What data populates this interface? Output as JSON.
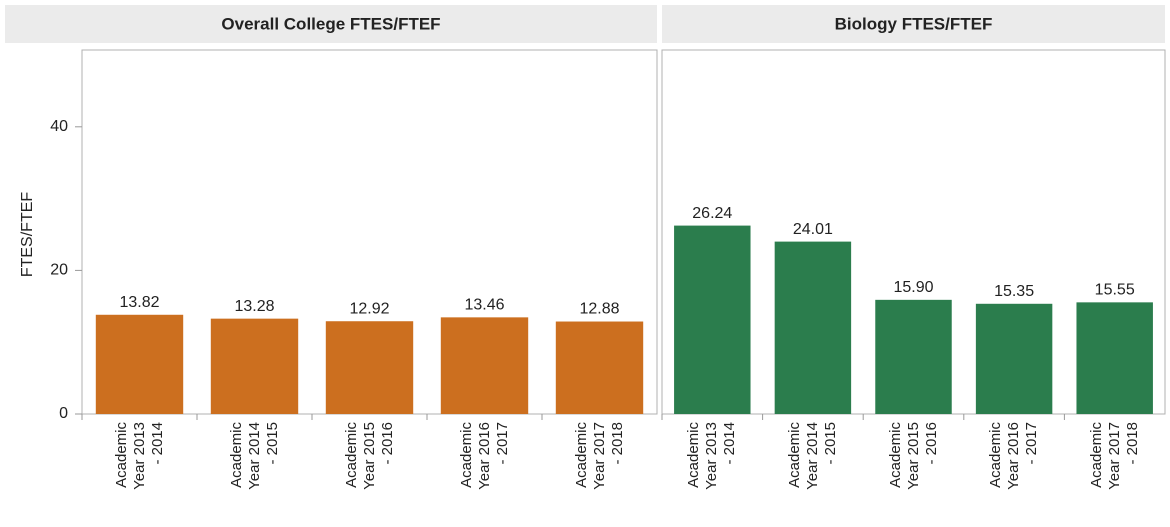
{
  "chart_data": [
    {
      "type": "bar",
      "title": "Overall College FTES/FTEF",
      "y_label": "FTES/FTEF",
      "categories": [
        "Academic Year 2013 - 2014",
        "Academic Year 2014 - 2015",
        "Academic Year 2015 - 2016",
        "Academic Year 2016 - 2017",
        "Academic Year 2017 - 2018"
      ],
      "values": [
        13.82,
        13.28,
        12.92,
        13.46,
        12.88
      ],
      "value_labels": [
        "13.82",
        "13.28",
        "12.92",
        "13.46",
        "12.88"
      ],
      "color": "#cc6f1f",
      "ylim": [
        0,
        50
      ],
      "yticks": [
        0,
        20,
        40
      ]
    },
    {
      "type": "bar",
      "title": "Biology FTES/FTEF",
      "categories": [
        "Academic Year 2013 - 2014",
        "Academic Year 2014 - 2015",
        "Academic Year 2015 - 2016",
        "Academic Year 2016 - 2017",
        "Academic Year 2017 - 2018"
      ],
      "values": [
        26.24,
        24.01,
        15.9,
        15.35,
        15.55
      ],
      "value_labels": [
        "26.24",
        "24.01",
        "15.90",
        "15.35",
        "15.55"
      ],
      "color": "#2b7d4d",
      "ylim": [
        0,
        50
      ]
    }
  ]
}
